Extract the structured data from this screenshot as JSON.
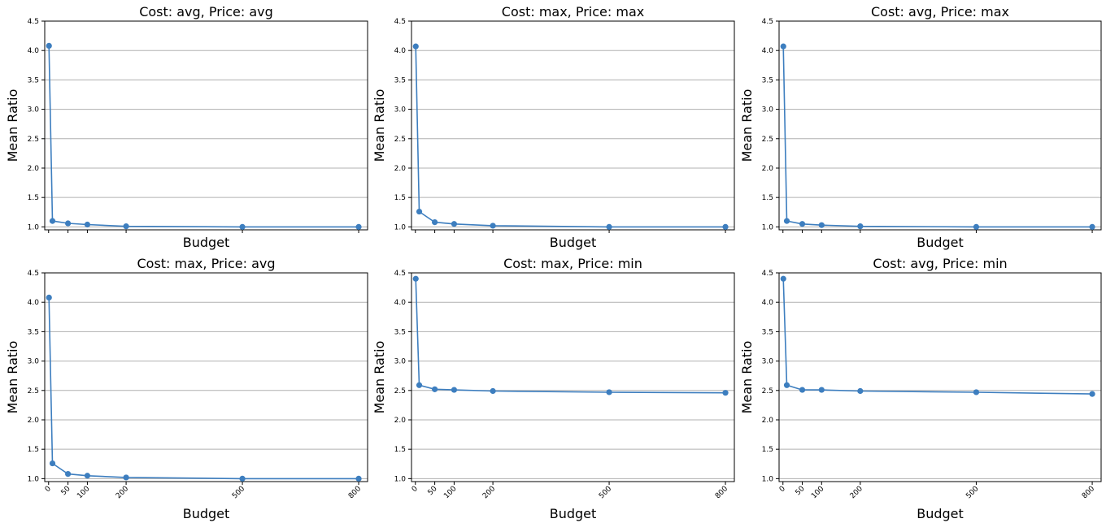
{
  "chart_data": [
    {
      "type": "line",
      "title": "Cost: avg, Price: avg",
      "xlabel": "Budget",
      "ylabel": "Mean Ratio",
      "x": [
        1,
        10,
        50,
        100,
        200,
        500,
        800
      ],
      "values": [
        4.08,
        1.1,
        1.06,
        1.04,
        1.01,
        1.0,
        1.0
      ],
      "xticks": [],
      "yticks": [
        "1.0",
        "1.5",
        "2.0",
        "2.5",
        "3.0",
        "3.5",
        "4.0",
        "4.5"
      ],
      "ylim": [
        0.95,
        4.5
      ],
      "xlim": [
        -10,
        823
      ],
      "grid": "y",
      "color": "#3d7ebf"
    },
    {
      "type": "line",
      "title": "Cost: max, Price: max",
      "xlabel": "Budget",
      "ylabel": "Mean Ratio",
      "x": [
        1,
        10,
        50,
        100,
        200,
        500,
        800
      ],
      "values": [
        4.07,
        1.26,
        1.08,
        1.05,
        1.02,
        1.0,
        1.0
      ],
      "xticks": [],
      "yticks": [
        "1.0",
        "1.5",
        "2.0",
        "2.5",
        "3.0",
        "3.5",
        "4.0",
        "4.5"
      ],
      "ylim": [
        0.95,
        4.5
      ],
      "xlim": [
        -10,
        823
      ],
      "grid": "y",
      "color": "#3d7ebf"
    },
    {
      "type": "line",
      "title": "Cost: avg, Price: max",
      "xlabel": "Budget",
      "ylabel": "Mean Ratio",
      "x": [
        1,
        10,
        50,
        100,
        200,
        500,
        800
      ],
      "values": [
        4.07,
        1.1,
        1.05,
        1.03,
        1.01,
        1.0,
        1.0
      ],
      "xticks": [],
      "yticks": [
        "1.0",
        "1.5",
        "2.0",
        "2.5",
        "3.0",
        "3.5",
        "4.0",
        "4.5"
      ],
      "ylim": [
        0.95,
        4.5
      ],
      "xlim": [
        -10,
        823
      ],
      "grid": "y",
      "color": "#3d7ebf"
    },
    {
      "type": "line",
      "title": "Cost: max, Price: avg",
      "xlabel": "Budget",
      "ylabel": "Mean Ratio",
      "x": [
        1,
        10,
        50,
        100,
        200,
        500,
        800
      ],
      "values": [
        4.08,
        1.26,
        1.08,
        1.05,
        1.02,
        1.0,
        1.0
      ],
      "xticks": [
        "0",
        "50",
        "100",
        "200",
        "500",
        "800"
      ],
      "yticks": [
        "1.0",
        "1.5",
        "2.0",
        "2.5",
        "3.0",
        "3.5",
        "4.0",
        "4.5"
      ],
      "ylim": [
        0.95,
        4.5
      ],
      "xlim": [
        -10,
        823
      ],
      "grid": "y",
      "color": "#3d7ebf"
    },
    {
      "type": "line",
      "title": "Cost: max, Price: min",
      "xlabel": "Budget",
      "ylabel": "Mean Ratio",
      "x": [
        1,
        10,
        50,
        100,
        200,
        500,
        800
      ],
      "values": [
        4.4,
        2.59,
        2.52,
        2.51,
        2.49,
        2.47,
        2.46
      ],
      "xticks": [
        "0",
        "50",
        "100",
        "200",
        "500",
        "800"
      ],
      "yticks": [
        "1.0",
        "1.5",
        "2.0",
        "2.5",
        "3.0",
        "3.5",
        "4.0",
        "4.5"
      ],
      "ylim": [
        0.95,
        4.5
      ],
      "xlim": [
        -10,
        823
      ],
      "grid": "y",
      "color": "#3d7ebf"
    },
    {
      "type": "line",
      "title": "Cost: avg, Price: min",
      "xlabel": "Budget",
      "ylabel": "Mean Ratio",
      "x": [
        1,
        10,
        50,
        100,
        200,
        500,
        800
      ],
      "values": [
        4.4,
        2.59,
        2.51,
        2.51,
        2.49,
        2.47,
        2.44
      ],
      "xticks": [
        "0",
        "50",
        "100",
        "200",
        "500",
        "800"
      ],
      "yticks": [
        "1.0",
        "1.5",
        "2.0",
        "2.5",
        "3.0",
        "3.5",
        "4.0",
        "4.5"
      ],
      "ylim": [
        0.95,
        4.5
      ],
      "xlim": [
        -10,
        823
      ],
      "grid": "y",
      "color": "#3d7ebf"
    }
  ]
}
